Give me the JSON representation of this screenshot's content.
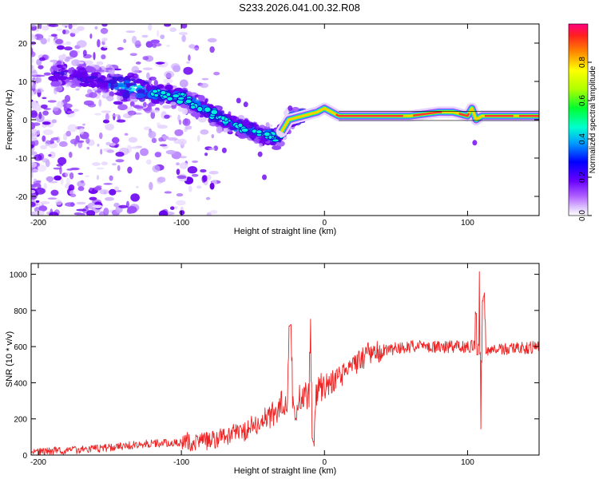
{
  "title": "S233.2026.041.00.32.R08",
  "colors": {
    "snr_line": "#ee2222",
    "spectral_track": "#ff3333",
    "spectral_low": "#7f00ff",
    "spectral_mid": "#00ffcc"
  },
  "chart_data": [
    {
      "type": "heatmap",
      "name": "spectrogram",
      "title": "",
      "xlabel": "Height of straight line (km)",
      "ylabel": "Frequency (Hz)",
      "xlim": [
        -205,
        150
      ],
      "ylim": [
        -25,
        25
      ],
      "xticks": [
        -200,
        -100,
        0,
        100
      ],
      "yticks": [
        -20,
        -10,
        0,
        10,
        20
      ],
      "colorbar": {
        "label": "Normalized spectral amplitude",
        "range": [
          0.0,
          1.0
        ],
        "ticks": [
          "0.0",
          "0.2",
          "0.4",
          "0.6",
          "0.8"
        ],
        "tick_values": [
          0.0,
          0.2,
          0.4,
          0.6,
          0.8
        ]
      },
      "ridge": {
        "x": [
          -180,
          -160,
          -140,
          -120,
          -100,
          -90,
          -80,
          -70,
          -60,
          -50,
          -40,
          -33,
          -25,
          -15,
          -5,
          0,
          5,
          10,
          20,
          40,
          60,
          80,
          90,
          100,
          103,
          106,
          110,
          120,
          130,
          150
        ],
        "y": [
          12,
          10,
          9,
          7,
          6,
          4,
          2,
          0,
          -2,
          -3,
          -4,
          -5,
          0,
          1,
          2,
          3,
          2,
          1,
          1,
          1,
          1,
          2,
          2,
          1,
          3,
          0,
          1,
          1,
          1,
          1
        ]
      }
    },
    {
      "type": "line",
      "name": "snr",
      "title": "",
      "xlabel": "Height of straight line (km)",
      "ylabel": "SNR (10 * v/v)",
      "xlim": [
        -205,
        150
      ],
      "ylim": [
        0,
        1060
      ],
      "xticks": [
        -200,
        -100,
        0,
        100
      ],
      "yticks": [
        0,
        200,
        400,
        600,
        800,
        1000
      ],
      "trend": {
        "x": [
          -205,
          -180,
          -150,
          -130,
          -100,
          -80,
          -60,
          -40,
          -30,
          -20,
          -10,
          0,
          10,
          20,
          30,
          40,
          60,
          80,
          100,
          108,
          112,
          120,
          150
        ],
        "y": [
          20,
          25,
          40,
          60,
          70,
          80,
          120,
          200,
          280,
          330,
          330,
          380,
          420,
          500,
          560,
          580,
          600,
          600,
          600,
          600,
          580,
          580,
          600
        ]
      },
      "spikes": [
        {
          "x": -24,
          "y": 720
        },
        {
          "x": -20,
          "y": 200
        },
        {
          "x": -9,
          "y": 760
        },
        {
          "x": -8,
          "y": 50
        },
        {
          "x": 107,
          "y": 980
        },
        {
          "x": 108,
          "y": 130
        },
        {
          "x": 109,
          "y": 1060
        },
        {
          "x": 110,
          "y": 100
        },
        {
          "x": 111,
          "y": 900
        }
      ]
    }
  ]
}
